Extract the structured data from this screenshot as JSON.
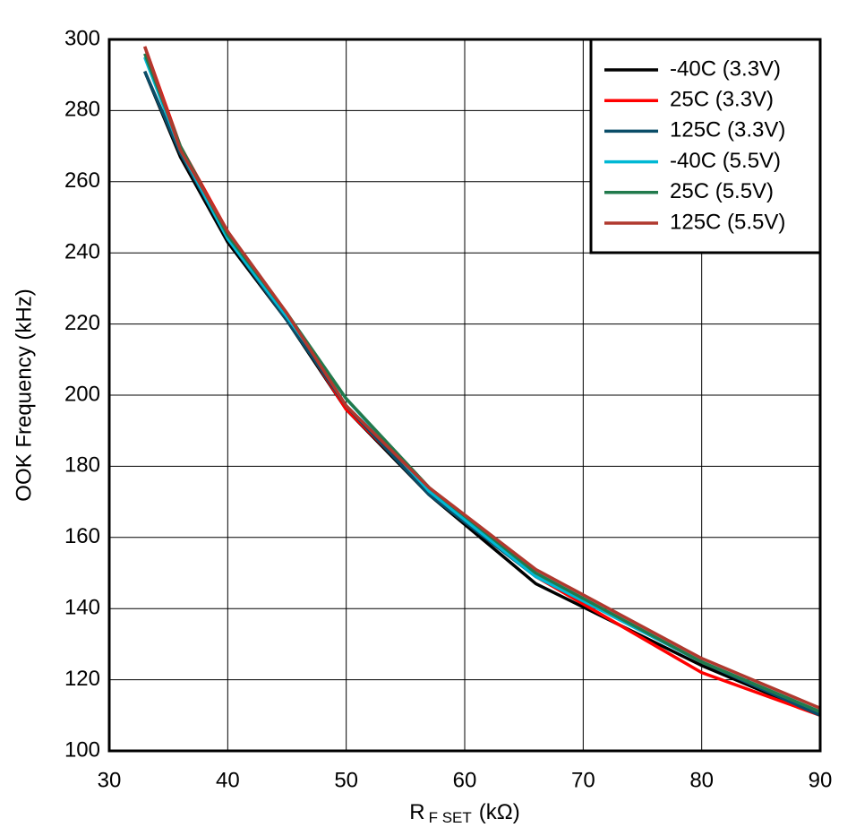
{
  "chart_data": {
    "type": "line",
    "ylabel": "OOK Frequency (kHz)",
    "xlabel": [
      "R",
      "F SET",
      "(kΩ)"
    ],
    "x": [
      33,
      36,
      40,
      45,
      50,
      57,
      66,
      80,
      90
    ],
    "series": [
      {
        "name": "-40C (3.3V)",
        "color": "#000000",
        "values": [
          291,
          267,
          243,
          221,
          196,
          172,
          147,
          124,
          110
        ]
      },
      {
        "name": "25C (3.3V)",
        "color": "#ff0000",
        "values": [
          298,
          270,
          246,
          222,
          196,
          173,
          149,
          122,
          110
        ]
      },
      {
        "name": "125C (3.3V)",
        "color": "#0a4d68",
        "values": [
          291,
          268,
          244,
          221,
          197,
          172,
          149,
          125,
          110
        ]
      },
      {
        "name": "-40C (5.5V)",
        "color": "#00b8d4",
        "values": [
          295,
          269,
          244,
          222,
          199,
          173,
          149,
          125,
          111
        ]
      },
      {
        "name": "25C (5.5V)",
        "color": "#217a4c",
        "values": [
          296,
          270,
          245,
          223,
          199,
          174,
          150,
          125,
          111
        ]
      },
      {
        "name": "125C (5.5V)",
        "color": "#b0392e",
        "values": [
          298,
          269,
          246,
          223,
          197,
          174,
          151,
          126,
          112
        ]
      }
    ],
    "xlim": [
      30,
      90
    ],
    "xticks": [
      30,
      40,
      50,
      60,
      70,
      80,
      90
    ],
    "ylim": [
      100,
      300
    ],
    "yticks": [
      100,
      120,
      140,
      160,
      180,
      200,
      220,
      240,
      260,
      280,
      300
    ],
    "grid": true,
    "legend": "upper right"
  }
}
